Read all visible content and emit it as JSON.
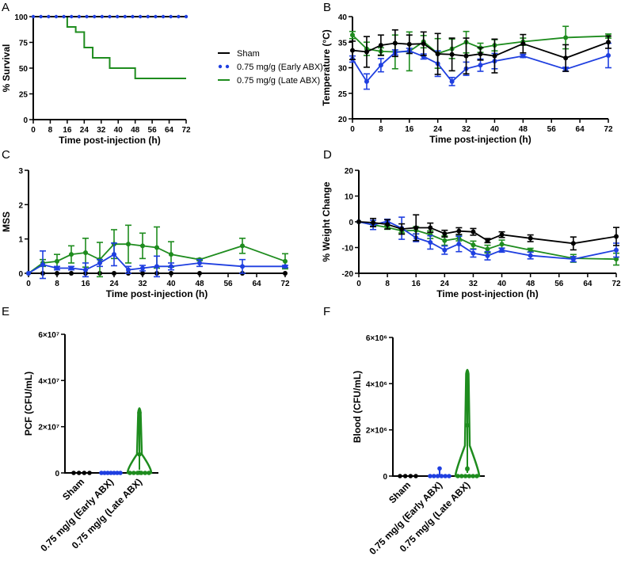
{
  "colors": {
    "sham": "#000000",
    "early": "#1f3fe0",
    "late": "#1e8c1e"
  },
  "legend": [
    {
      "label": "Sham",
      "series": "sham",
      "style": "line"
    },
    {
      "label": "0.75 mg/g (Early ABX)",
      "series": "early",
      "style": "dots"
    },
    {
      "label": "0.75 mg/g (Late ABX)",
      "series": "late",
      "style": "line"
    }
  ],
  "chart_data": [
    {
      "panel": "A",
      "type": "line",
      "subtype": "kaplan-meier",
      "xlabel": "Time post-injection (h)",
      "ylabel": "% Survival",
      "xlim": [
        0,
        72
      ],
      "ylim": [
        0,
        100
      ],
      "xticks": [
        0,
        8,
        16,
        24,
        32,
        40,
        48,
        56,
        64,
        72
      ],
      "yticks": [
        0,
        25,
        50,
        75,
        100
      ],
      "series": [
        {
          "name": "Sham",
          "key": "sham",
          "x": [
            0,
            72
          ],
          "y": [
            100,
            100
          ]
        },
        {
          "name": "0.75 mg/g (Early ABX)",
          "key": "early",
          "x": [
            0,
            72
          ],
          "y": [
            100,
            100
          ]
        },
        {
          "name": "0.75 mg/g (Late ABX)",
          "key": "late",
          "x": [
            0,
            16,
            20,
            24,
            28,
            36,
            48,
            72
          ],
          "y": [
            100,
            90,
            85,
            70,
            60,
            50,
            40,
            40
          ]
        }
      ]
    },
    {
      "panel": "B",
      "type": "line",
      "xlabel": "Time post-injection (h)",
      "ylabel": "Temperature (°C)",
      "xlim": [
        0,
        72
      ],
      "ylim": [
        20,
        40
      ],
      "xticks": [
        0,
        8,
        16,
        24,
        32,
        40,
        48,
        56,
        64,
        72
      ],
      "yticks": [
        20,
        25,
        30,
        35,
        40
      ],
      "series": [
        {
          "name": "Sham",
          "key": "sham",
          "x": [
            0,
            4,
            8,
            12,
            16,
            20,
            24,
            28,
            32,
            36,
            40,
            48,
            60,
            72
          ],
          "y": [
            33.4,
            33.1,
            34.4,
            34.8,
            34.6,
            34.7,
            32.7,
            32.6,
            32.3,
            32.7,
            32.3,
            34.7,
            31.9,
            35.0
          ],
          "err": [
            1.8,
            3.0,
            2.0,
            2.6,
            1.8,
            2.3,
            4.0,
            3.2,
            3.5,
            1.2,
            3.3,
            1.8,
            2.6,
            1.2
          ]
        },
        {
          "name": "0.75 mg/g (Early ABX)",
          "key": "early",
          "x": [
            0,
            4,
            8,
            12,
            16,
            20,
            24,
            28,
            32,
            36,
            40,
            48,
            60,
            72
          ],
          "y": [
            31.7,
            27.3,
            30.5,
            33.0,
            33.3,
            32.2,
            30.8,
            27.3,
            29.8,
            30.5,
            31.3,
            32.3,
            29.7,
            32.4
          ],
          "err": [
            0.6,
            1.5,
            1.3,
            0.5,
            0.5,
            0.5,
            2.5,
            0.8,
            1.3,
            1.2,
            1.5,
            0.3,
            0.4,
            2.4
          ]
        },
        {
          "name": "0.75 mg/g (Late ABX)",
          "key": "late",
          "x": [
            0,
            4,
            8,
            12,
            16,
            20,
            24,
            28,
            32,
            36,
            40,
            48,
            60,
            72
          ],
          "y": [
            36.4,
            33.7,
            33.2,
            33.1,
            33.2,
            35.1,
            32.8,
            33.7,
            35.0,
            33.9,
            34.4,
            35.1,
            35.9,
            36.2
          ],
          "err": [
            0.7,
            1.3,
            0.7,
            3.3,
            3.8,
            1.2,
            2.9,
            1.9,
            2.1,
            0.9,
            1.1,
            0.7,
            2.2,
            0.4
          ]
        }
      ]
    },
    {
      "panel": "C",
      "type": "line",
      "xlabel": "Time post-injection (h)",
      "ylabel": "MSS",
      "xlim": [
        0,
        72
      ],
      "ylim": [
        0,
        3
      ],
      "xticks": [
        0,
        8,
        16,
        24,
        32,
        40,
        48,
        56,
        64,
        72
      ],
      "yticks": [
        0,
        1,
        2,
        3
      ],
      "series": [
        {
          "name": "Sham",
          "key": "sham",
          "x": [
            0,
            4,
            8,
            12,
            16,
            20,
            24,
            28,
            32,
            36,
            40,
            48,
            60,
            72
          ],
          "y": [
            0,
            0,
            0,
            0,
            0,
            0,
            0,
            0,
            0,
            0,
            0,
            0,
            0,
            0
          ],
          "err": [
            0,
            0,
            0,
            0,
            0,
            0,
            0,
            0,
            0,
            0,
            0,
            0,
            0,
            0
          ]
        },
        {
          "name": "0.75 mg/g (Early ABX)",
          "key": "early",
          "x": [
            0,
            4,
            8,
            12,
            16,
            20,
            24,
            28,
            32,
            36,
            40,
            48,
            60,
            72
          ],
          "y": [
            0,
            0.25,
            0.15,
            0.15,
            0.1,
            0.3,
            0.55,
            0.1,
            0.15,
            0.2,
            0.2,
            0.3,
            0.2,
            0.2
          ],
          "err": [
            0,
            0.4,
            0.05,
            0.05,
            0.2,
            0.1,
            0.33,
            0.1,
            0.08,
            0.3,
            0.1,
            0.1,
            0.2,
            0.03
          ]
        },
        {
          "name": "0.75 mg/g (Late ABX)",
          "key": "late",
          "x": [
            0,
            4,
            8,
            12,
            16,
            20,
            24,
            28,
            32,
            36,
            40,
            48,
            60,
            72
          ],
          "y": [
            0,
            0.3,
            0.35,
            0.55,
            0.6,
            0.4,
            0.85,
            0.85,
            0.8,
            0.75,
            0.55,
            0.4,
            0.8,
            0.35
          ],
          "err": [
            0,
            0.1,
            0.2,
            0.25,
            0.42,
            0.5,
            0.42,
            0.55,
            0.37,
            0.6,
            0.37,
            0.03,
            0.22,
            0.22
          ]
        }
      ]
    },
    {
      "panel": "D",
      "type": "line",
      "xlabel": "Time post-injection (h)",
      "ylabel": "% Weight Change",
      "xlim": [
        0,
        72
      ],
      "ylim": [
        -20,
        20
      ],
      "xticks": [
        0,
        8,
        16,
        24,
        32,
        40,
        48,
        56,
        64,
        72
      ],
      "yticks": [
        -20,
        -10,
        0,
        10,
        20
      ],
      "series": [
        {
          "name": "Sham",
          "key": "sham",
          "x": [
            0,
            4,
            8,
            12,
            16,
            20,
            24,
            28,
            32,
            36,
            40,
            48,
            60,
            72
          ],
          "y": [
            0,
            -0.3,
            -1.0,
            -2.8,
            -2.3,
            -2.3,
            -4.6,
            -3.6,
            -3.9,
            -7.3,
            -5.0,
            -6.4,
            -8.4,
            -5.7
          ],
          "err": [
            0,
            1.6,
            1.8,
            2.0,
            5.0,
            1.8,
            1.3,
            1.3,
            1.3,
            0.8,
            1.1,
            1.3,
            2.5,
            3.5
          ]
        },
        {
          "name": "0.75 mg/g (Early ABX)",
          "key": "early",
          "x": [
            0,
            4,
            8,
            12,
            16,
            20,
            24,
            28,
            32,
            36,
            40,
            48,
            60,
            72
          ],
          "y": [
            0,
            -1.2,
            0.2,
            -2.5,
            -6.2,
            -8.0,
            -11.0,
            -8.6,
            -12.2,
            -13.2,
            -11.0,
            -13.1,
            -14.5,
            -11.0
          ],
          "err": [
            0,
            1.8,
            0.8,
            4.3,
            1.5,
            2.6,
            1.6,
            3.0,
            1.5,
            1.6,
            0.8,
            1.3,
            1.0,
            2.7
          ]
        },
        {
          "name": "0.75 mg/g (Late ABX)",
          "key": "late",
          "x": [
            0,
            4,
            8,
            12,
            16,
            20,
            24,
            28,
            32,
            36,
            40,
            48,
            60,
            72
          ],
          "y": [
            0,
            -1.2,
            -2.2,
            -3.5,
            -3.3,
            -5.0,
            -7.3,
            -6.4,
            -9.0,
            -10.6,
            -8.7,
            -11.0,
            -14.2,
            -14.5
          ],
          "err": [
            0,
            0.5,
            0.7,
            0.8,
            1.4,
            1.5,
            1.8,
            1.0,
            1.5,
            1.5,
            1.6,
            0.7,
            1.5,
            2.3
          ]
        }
      ]
    },
    {
      "panel": "E",
      "type": "violin",
      "xlabel": "",
      "ylabel": "PCF (CFU/mL)",
      "ylim": [
        0,
        60000000
      ],
      "yticks": [
        0,
        20000000,
        40000000,
        60000000
      ],
      "ytick_labels": [
        "0",
        "2×10⁷",
        "4×10⁷",
        "6×10⁷"
      ],
      "categories": [
        "Sham",
        "0.75 mg/g (Early ABX)",
        "0.75 mg/g (Late ABX)"
      ],
      "series": [
        {
          "name": "Sham",
          "key": "sham",
          "points": [
            0,
            0,
            0,
            0
          ],
          "max": 0
        },
        {
          "name": "0.75 mg/g (Early ABX)",
          "key": "early",
          "points": [
            0,
            0,
            0,
            0,
            0,
            0,
            0
          ],
          "max": 500000
        },
        {
          "name": "0.75 mg/g (Late ABX)",
          "key": "late",
          "points": [
            0,
            0,
            0,
            0,
            0,
            0,
            100000,
            8000000,
            26000000
          ],
          "max": 29000000
        }
      ]
    },
    {
      "panel": "F",
      "type": "violin",
      "xlabel": "",
      "ylabel": "Blood (CFU/mL)",
      "ylim": [
        0,
        6000000
      ],
      "yticks": [
        0,
        2000000,
        4000000,
        6000000
      ],
      "ytick_labels": [
        "0",
        "2×10⁶",
        "4×10⁶",
        "6×10⁶"
      ],
      "categories": [
        "Sham",
        "0.75 mg/g (Early ABX)",
        "0.75 mg/g (Late ABX)"
      ],
      "series": [
        {
          "name": "Sham",
          "key": "sham",
          "points": [
            0,
            0,
            0,
            0
          ],
          "max": 0
        },
        {
          "name": "0.75 mg/g (Early ABX)",
          "key": "early",
          "points": [
            0,
            0,
            0,
            0,
            0,
            0,
            330000
          ],
          "max": 330000
        },
        {
          "name": "0.75 mg/g (Late ABX)",
          "key": "late",
          "points": [
            0,
            0,
            0,
            0,
            0,
            0,
            300000,
            330000,
            2200000,
            3300000
          ],
          "max": 4700000
        }
      ]
    }
  ]
}
